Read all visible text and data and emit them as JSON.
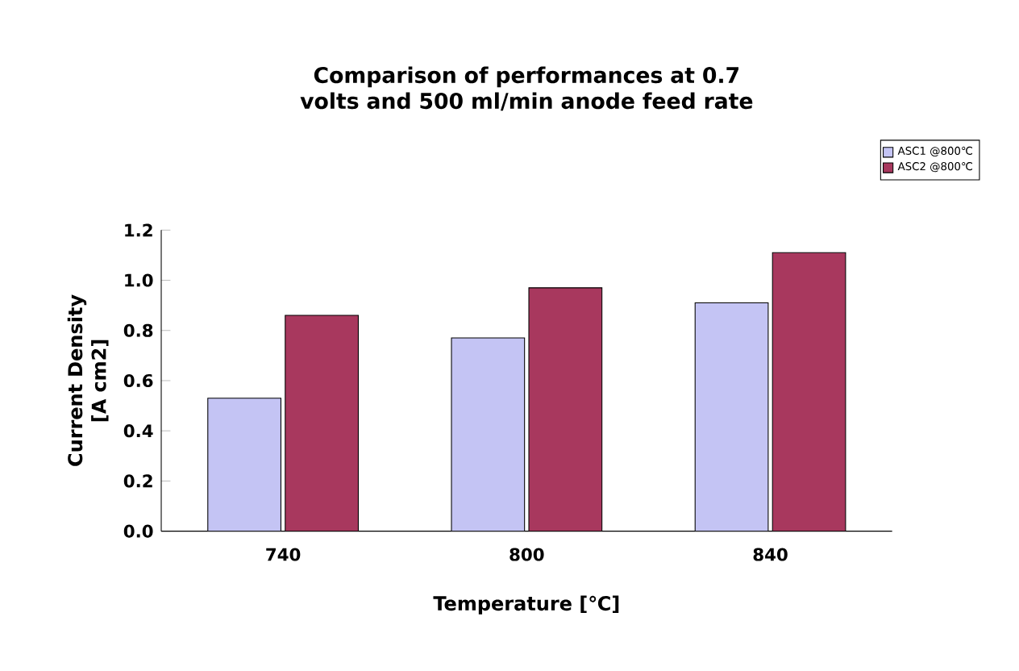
{
  "chart_data": {
    "type": "bar",
    "title": "Comparison of performances at 0.7 volts and 500 ml/min anode feed rate",
    "xlabel": "Temperature [℃]",
    "ylabel": "Current Density [A cm2]",
    "categories": [
      "740",
      "800",
      "840"
    ],
    "series": [
      {
        "name": "ASC1 @800℃",
        "color": "#c4c4f4",
        "values": [
          0.53,
          0.77,
          0.91
        ]
      },
      {
        "name": "ASC2 @800℃",
        "color": "#a8385e",
        "values": [
          0.86,
          0.97,
          1.11
        ]
      }
    ],
    "ylim": [
      0,
      1.2
    ],
    "yticks": [
      {
        "value": 0,
        "label": "0.0"
      },
      {
        "value": 0.2,
        "label": "0.2"
      },
      {
        "value": 0.4,
        "label": "0.4"
      },
      {
        "value": 0.6,
        "label": "0.6"
      },
      {
        "value": 0.8,
        "label": "0.8"
      },
      {
        "value": 1.0,
        "label": "1.0"
      },
      {
        "value": 1.2,
        "label": "1.2"
      }
    ],
    "legend": "top right",
    "grid": false
  }
}
